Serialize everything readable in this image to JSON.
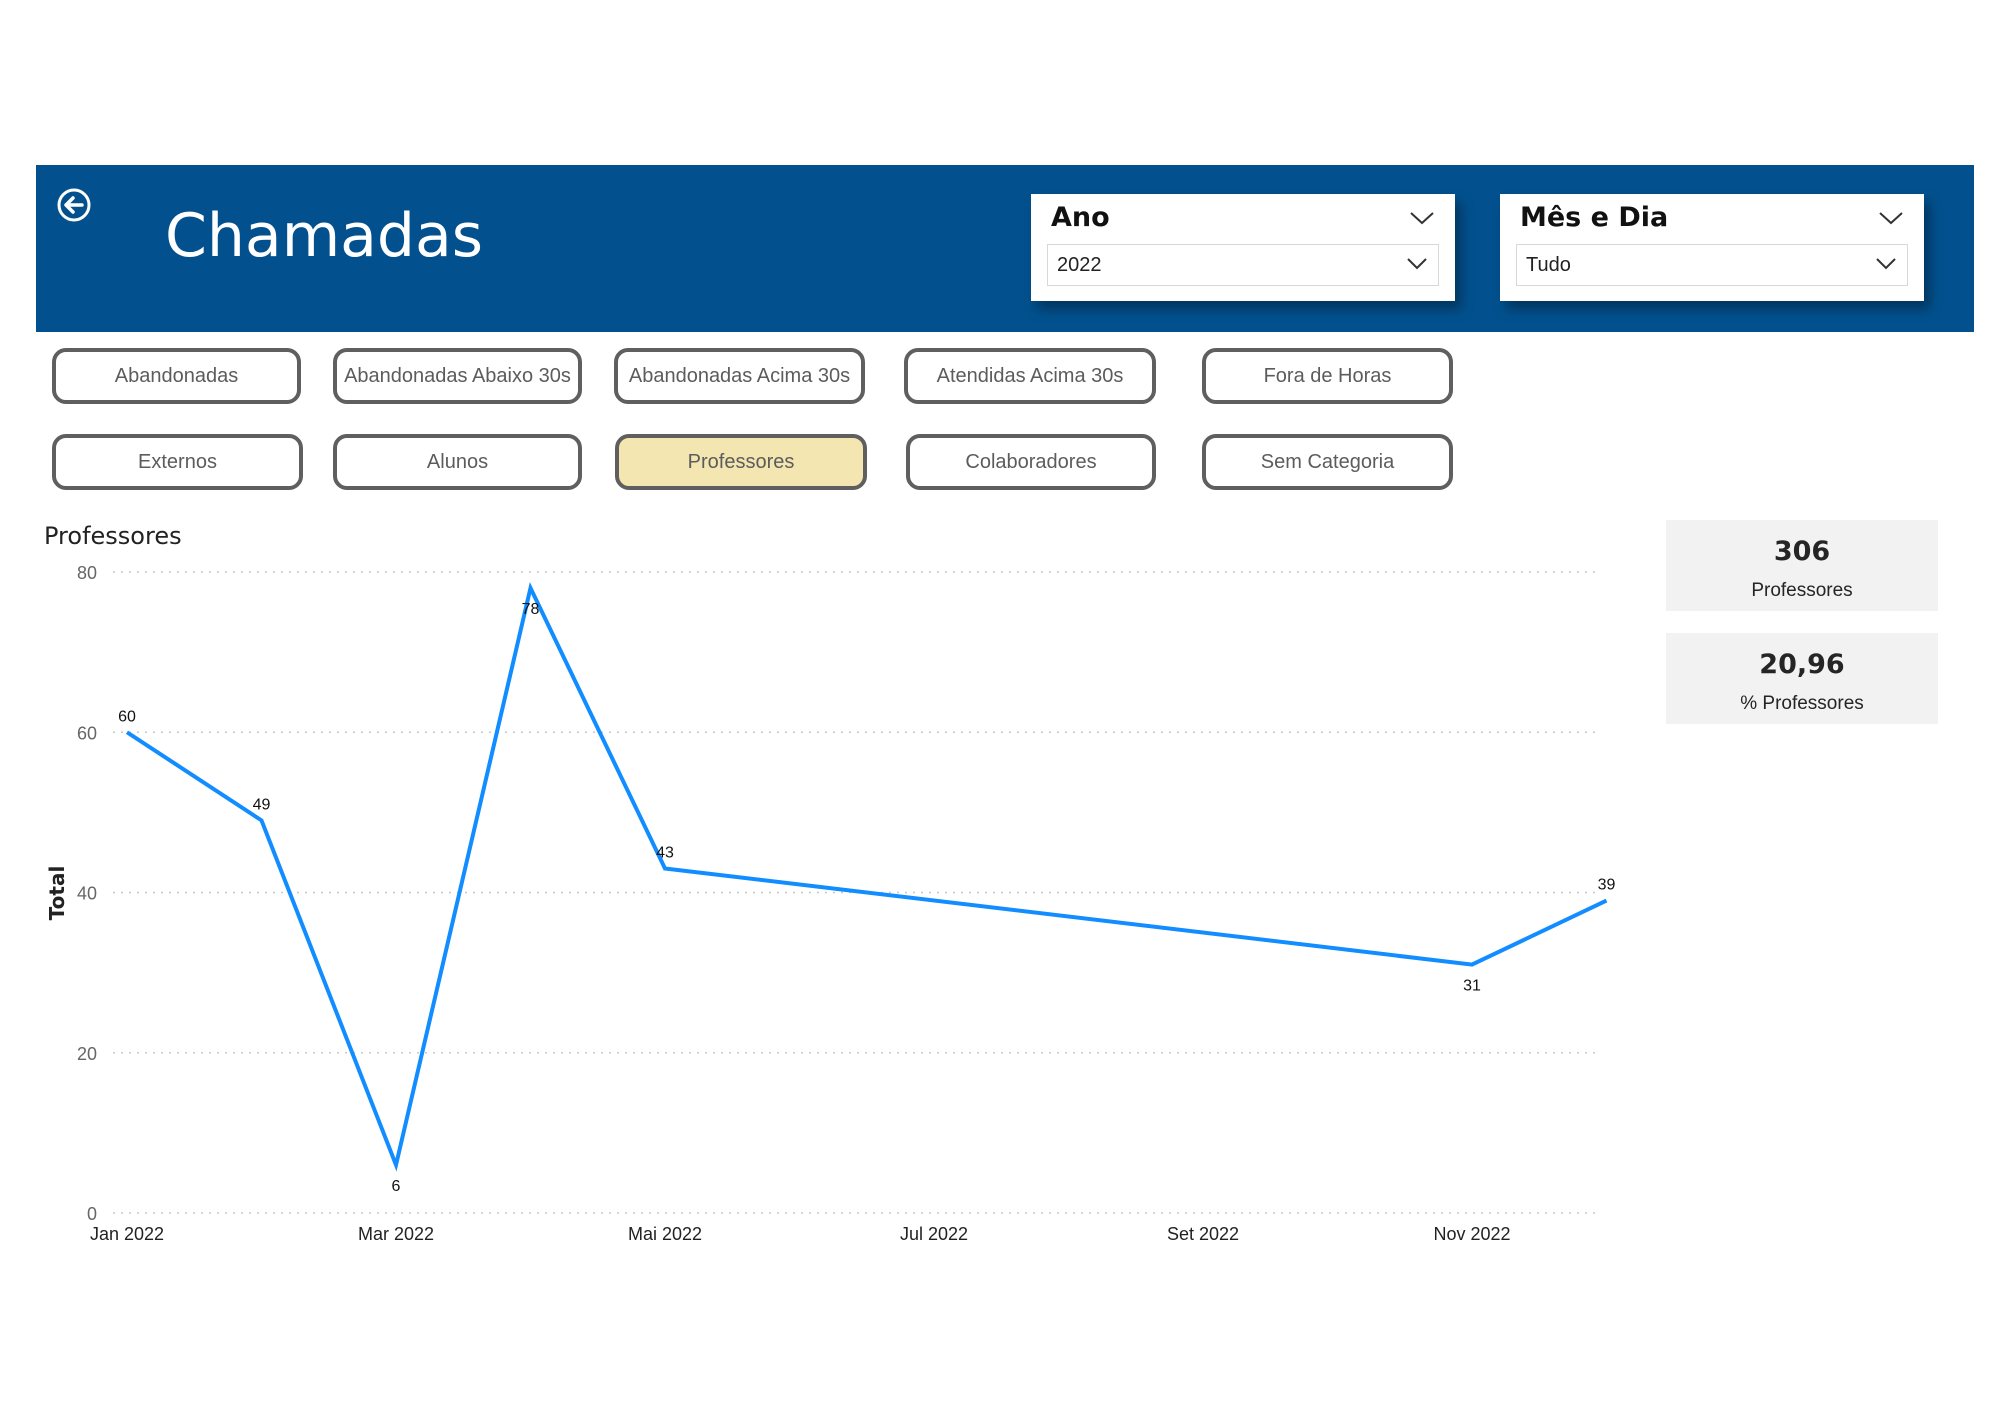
{
  "header": {
    "title": "Chamadas"
  },
  "slicers": [
    {
      "title": "Ano",
      "value": "2022"
    },
    {
      "title": "Mês e Dia",
      "value": "Tudo"
    }
  ],
  "buttons": {
    "row1": [
      "Abandonadas",
      "Abandonadas Abaixo 30s",
      "Abandonadas Acima 30s",
      "Atendidas Acima 30s",
      "Fora de Horas"
    ],
    "row2": [
      "Externos",
      "Alunos",
      "Professores",
      "Colaboradores",
      "Sem Categoria"
    ],
    "active": "Professores"
  },
  "kpis": [
    {
      "value": "306",
      "label": "Professores"
    },
    {
      "value": "20,96",
      "label": "% Professores"
    }
  ],
  "colors": {
    "header": "#02518e",
    "line": "#118dff",
    "active_button": "#f3e6b0"
  },
  "chart_data": {
    "type": "line",
    "title": "Professores",
    "ylabel": "Total",
    "xlabel": "",
    "ylim": [
      0,
      80
    ],
    "yticks": [
      0,
      20,
      40,
      60,
      80
    ],
    "xtick_labels": [
      "Jan 2022",
      "Mar 2022",
      "Mai 2022",
      "Jul 2022",
      "Set 2022",
      "Nov 2022"
    ],
    "x": [
      "2022-01",
      "2022-02",
      "2022-03",
      "2022-04",
      "2022-05",
      "2022-11",
      "2022-12"
    ],
    "values": [
      60,
      49,
      6,
      78,
      43,
      31,
      39
    ],
    "grid": true
  }
}
